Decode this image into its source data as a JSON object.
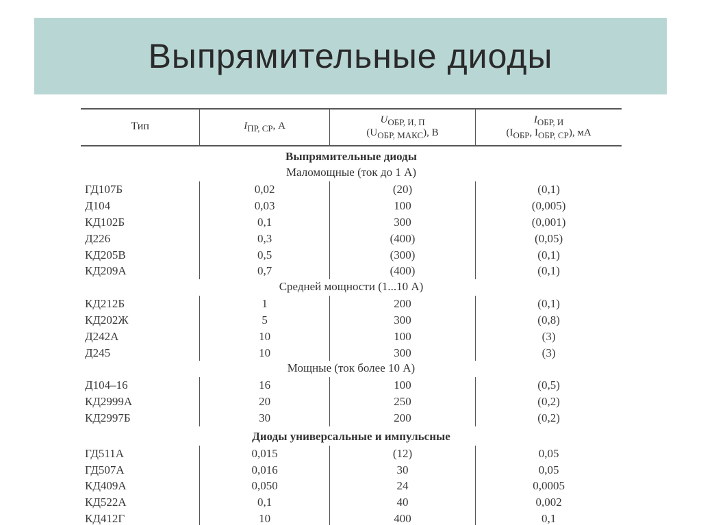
{
  "title": "Выпрямительные диоды",
  "colors": {
    "title_band_bg": "#b8d6d4",
    "title_text": "#2a2a2a",
    "table_text": "#3a3a3a",
    "border": "#555555",
    "page_bg": "#ffffff"
  },
  "typography": {
    "title_fontsize_pt": 38,
    "body_fontsize_pt": 12,
    "header_fontsize_pt": 11,
    "title_font": "Arial",
    "table_font": "Georgia / Times"
  },
  "table": {
    "type": "table",
    "columns": [
      {
        "key": "type",
        "header_main": "Тип",
        "width_pct": 22,
        "align": "left"
      },
      {
        "key": "i_pr",
        "header_main": "I",
        "header_sub": "ПР, СР",
        "header_unit": ", А",
        "width_pct": 24,
        "align": "center"
      },
      {
        "key": "u_obr",
        "header_line1_main": "U",
        "header_line1_sub": "ОБР, И, П",
        "header_line2_pre": "(U",
        "header_line2_sub": "ОБР, МАКС",
        "header_line2_post": "), В",
        "width_pct": 27,
        "align": "center"
      },
      {
        "key": "i_obr",
        "header_line1_main": "I",
        "header_line1_sub": "ОБР, И",
        "header_line2_pre": "(I",
        "header_line2_sub1": "ОБР",
        "header_line2_mid": ", I",
        "header_line2_sub2": "ОБР, СР",
        "header_line2_post": "), мА",
        "width_pct": 27,
        "align": "center"
      }
    ],
    "sections": [
      {
        "title": "Выпрямительные диоды",
        "subtitle": "Маломощные (ток до 1 А)",
        "rows": [
          {
            "type": "ГД107Б",
            "i_pr": "0,02",
            "u_obr": "(20)",
            "i_obr": "(0,1)"
          },
          {
            "type": "Д104",
            "i_pr": "0,03",
            "u_obr": "100",
            "i_obr": "(0,005)"
          },
          {
            "type": "КД102Б",
            "i_pr": "0,1",
            "u_obr": "300",
            "i_obr": "(0,001)"
          },
          {
            "type": "Д226",
            "i_pr": "0,3",
            "u_obr": "(400)",
            "i_obr": "(0,05)"
          },
          {
            "type": "КД205В",
            "i_pr": "0,5",
            "u_obr": "(300)",
            "i_obr": "(0,1)"
          },
          {
            "type": "КД209А",
            "i_pr": "0,7",
            "u_obr": "(400)",
            "i_obr": "(0,1)"
          }
        ]
      },
      {
        "subtitle": "Средней мощности (1...10 А)",
        "rows": [
          {
            "type": "КД212Б",
            "i_pr": "1",
            "u_obr": "200",
            "i_obr": "(0,1)"
          },
          {
            "type": "КД202Ж",
            "i_pr": "5",
            "u_obr": "300",
            "i_obr": "(0,8)"
          },
          {
            "type": "Д242А",
            "i_pr": "10",
            "u_obr": "100",
            "i_obr": "(3)"
          },
          {
            "type": "Д245",
            "i_pr": "10",
            "u_obr": "300",
            "i_obr": "(3)"
          }
        ]
      },
      {
        "subtitle": "Мощные (ток более 10 А)",
        "rows": [
          {
            "type": "Д104–16",
            "i_pr": "16",
            "u_obr": "100",
            "i_obr": "(0,5)"
          },
          {
            "type": "КД2999А",
            "i_pr": "20",
            "u_obr": "250",
            "i_obr": "(0,2)"
          },
          {
            "type": "КД2997Б",
            "i_pr": "30",
            "u_obr": "200",
            "i_obr": "(0,2)"
          }
        ]
      },
      {
        "title": "Диоды универсальные и импульсные",
        "rows": [
          {
            "type": "ГД511А",
            "i_pr": "0,015",
            "u_obr": "(12)",
            "i_obr": "0,05"
          },
          {
            "type": "ГД507А",
            "i_pr": "0,016",
            "u_obr": "30",
            "i_obr": "0,05"
          },
          {
            "type": "КД409А",
            "i_pr": "0,050",
            "u_obr": "24",
            "i_obr": "0,0005"
          },
          {
            "type": "КД522А",
            "i_pr": "0,1",
            "u_obr": "40",
            "i_obr": "0,002"
          },
          {
            "type": "КД412Г",
            "i_pr": "10",
            "u_obr": "400",
            "i_obr": "0,1"
          }
        ]
      }
    ]
  }
}
